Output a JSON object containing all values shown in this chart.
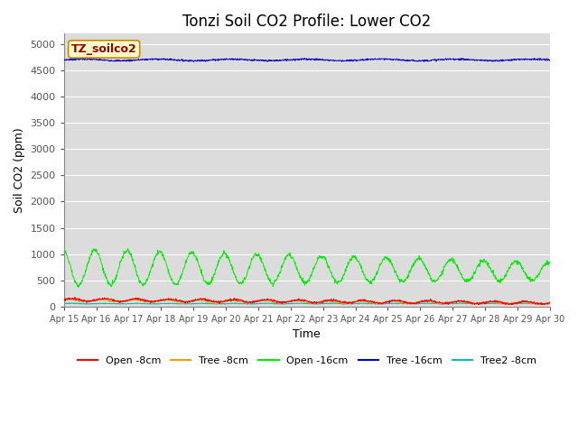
{
  "title": "Tonzi Soil CO2 Profile: Lower CO2",
  "xlabel": "Time",
  "ylabel": "Soil CO2 (ppm)",
  "ylim": [
    0,
    5200
  ],
  "yticks": [
    0,
    500,
    1000,
    1500,
    2000,
    2500,
    3000,
    3500,
    4000,
    4500,
    5000
  ],
  "background_color": "#dcdcdc",
  "legend_label": "TZ_soilco2",
  "legend_box_bg": "#ffffcc",
  "legend_box_border": "#cc8800",
  "legend_text_color": "#990000",
  "series": {
    "open_8cm": {
      "label": "Open -8cm",
      "color": "#ff0000"
    },
    "tree_8cm": {
      "label": "Tree -8cm",
      "color": "#ff9900"
    },
    "open_16cm": {
      "label": "Open -16cm",
      "color": "#00ee00"
    },
    "tree_16cm": {
      "label": "Tree -16cm",
      "color": "#0000cc"
    },
    "tree2_8cm": {
      "label": "Tree2 -8cm",
      "color": "#00bbbb"
    }
  },
  "xtick_labels": [
    "Apr 15",
    "Apr 16",
    "Apr 17",
    "Apr 18",
    "Apr 19",
    "Apr 20",
    "Apr 21",
    "Apr 22",
    "Apr 23",
    "Apr 24",
    "Apr 25",
    "Apr 26",
    "Apr 27",
    "Apr 28",
    "Apr 29",
    "Apr 30"
  ],
  "title_fontsize": 12,
  "axis_label_fontsize": 9,
  "tick_fontsize": 8,
  "num_points": 1440,
  "total_days": 15
}
